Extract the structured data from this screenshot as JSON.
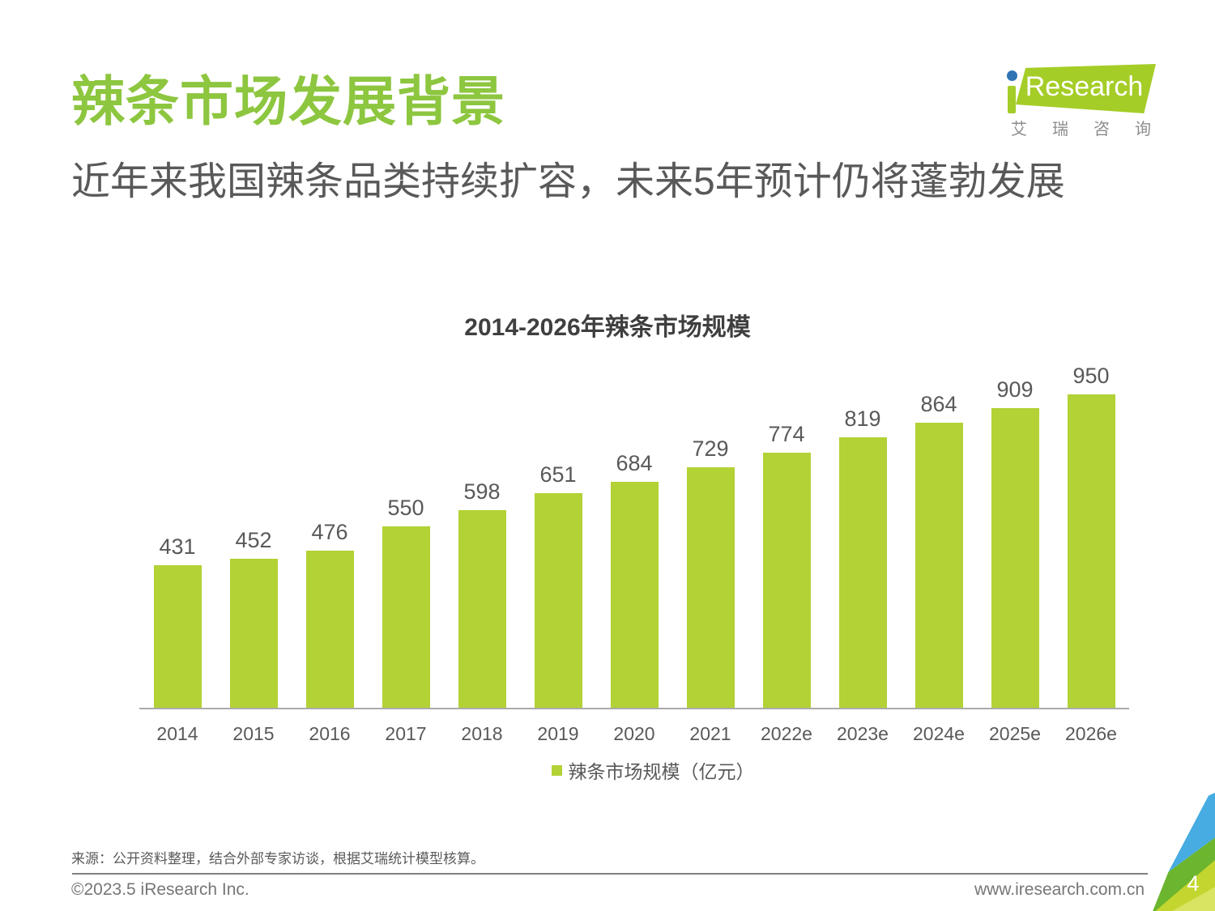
{
  "header": {
    "title": "辣条市场发展背景",
    "subtitle": "近年来我国辣条品类持续扩容，未来5年预计仍将蓬勃发展"
  },
  "brand": {
    "logo_text": "Research",
    "logo_i": "i",
    "logo_subtext": "艾瑞咨询"
  },
  "chart_data": {
    "type": "bar",
    "title": "2014-2026年辣条市场规模",
    "categories": [
      "2014",
      "2015",
      "2016",
      "2017",
      "2018",
      "2019",
      "2020",
      "2021",
      "2022e",
      "2023e",
      "2024e",
      "2025e",
      "2026e"
    ],
    "values": [
      431,
      452,
      476,
      550,
      598,
      651,
      684,
      729,
      774,
      819,
      864,
      909,
      950
    ],
    "legend": "辣条市场规模（亿元）",
    "unit": "亿元",
    "xlabel": "",
    "ylabel": "",
    "ylim": [
      0,
      950
    ],
    "grid": false,
    "legend_position": "bottom",
    "bar_color": "#B2D235"
  },
  "footer": {
    "source": "来源：公开资料整理，结合外部专家访谈，根据艾瑞统计模型核算。",
    "copyright": "©2023.5 iResearch Inc.",
    "website": "www.iresearch.com.cn",
    "page_number": "4"
  },
  "colors": {
    "title_green": "#8DC63F",
    "bar_green": "#B2D235",
    "logo_green": "#A5CD27",
    "logo_dot_blue": "#2E74B5",
    "corner_blue": "#47ACE1",
    "corner_green": "#6CB52E",
    "corner_yellow": "#C3D62F",
    "axis_gray": "#ABABAB",
    "text_gray": "#595959"
  }
}
